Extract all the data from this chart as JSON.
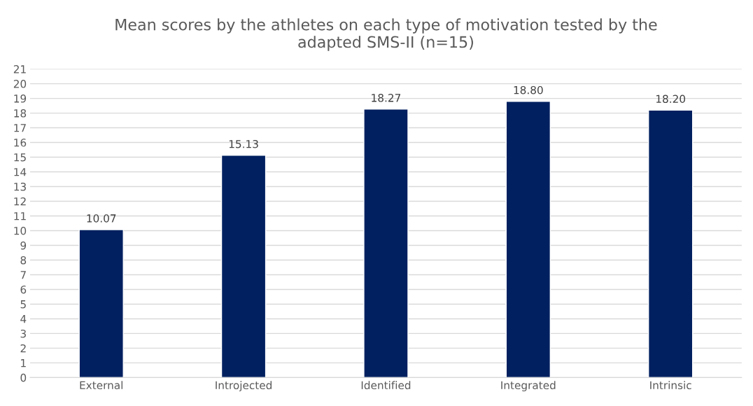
{
  "chart_data": {
    "type": "bar",
    "title": "Mean scores by the athletes on each type of motivation tested by the\nadapted SMS-II (n=15)",
    "categories": [
      "External",
      "Introjected",
      "Identified",
      "Integrated",
      "Intrinsic"
    ],
    "values": [
      10.07,
      15.13,
      18.27,
      18.8,
      18.2
    ],
    "value_labels": [
      "10.07",
      "15.13",
      "18.27",
      "18.80",
      "18.20"
    ],
    "color": "#002060",
    "ylim": [
      0,
      21
    ],
    "yticks": [
      0,
      1,
      2,
      3,
      4,
      5,
      6,
      7,
      8,
      9,
      10,
      11,
      12,
      13,
      14,
      15,
      16,
      17,
      18,
      19,
      20,
      21
    ],
    "grid": "y"
  }
}
